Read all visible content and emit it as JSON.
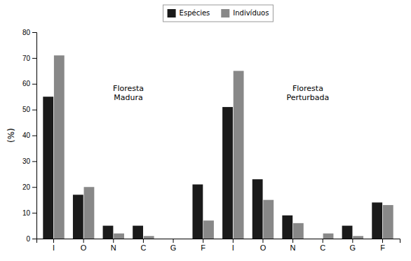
{
  "chart_data": {
    "type": "bar",
    "categories": [
      "I",
      "O",
      "N",
      "C",
      "G",
      "F",
      "I",
      "O",
      "N",
      "C",
      "G",
      "F"
    ],
    "series": [
      {
        "name": "Espécies",
        "color": "#1a1a1a",
        "values": [
          55,
          17,
          5,
          5,
          0,
          21,
          51,
          23,
          9,
          0,
          5,
          14
        ]
      },
      {
        "name": "Indivíduos",
        "color": "#888888",
        "values": [
          71,
          20,
          2,
          1,
          0,
          7,
          65,
          15,
          6,
          2,
          1,
          13
        ]
      }
    ],
    "ylabel": "(%)",
    "ylim": [
      0,
      80
    ],
    "yticks": [
      0,
      10,
      20,
      30,
      40,
      50,
      60,
      70,
      80
    ],
    "annotations": [
      "Floresta\nMadura",
      "Floresta\nPerturbada"
    ],
    "legend": "top",
    "grid": false
  }
}
